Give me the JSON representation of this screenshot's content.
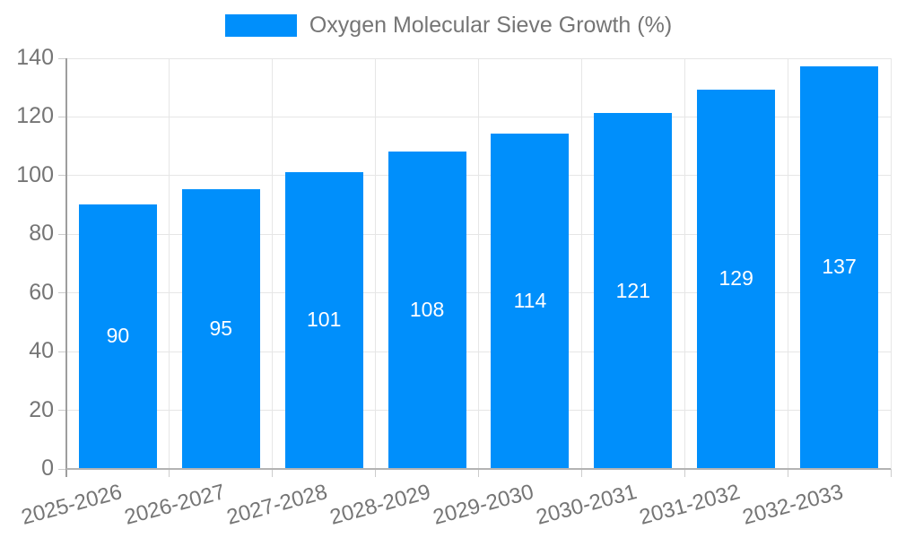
{
  "chart_data": {
    "type": "bar",
    "title": "",
    "legend": {
      "position": "top",
      "label": "Oxygen Molecular Sieve Growth (%)"
    },
    "categories": [
      "2025-2026",
      "2026-2027",
      "2027-2028",
      "2028-2029",
      "2029-2030",
      "2030-2031",
      "2031-2032",
      "2032-2033"
    ],
    "values": [
      90,
      95,
      101,
      108,
      114,
      121,
      129,
      137
    ],
    "xlabel": "",
    "ylabel": "",
    "ylim": [
      0,
      140
    ],
    "yticks": [
      0,
      20,
      40,
      60,
      80,
      100,
      120,
      140
    ],
    "grid": "on",
    "bar_color": "#008FFB",
    "bar_label_color": "#ffffff",
    "axis_text_color": "#757575",
    "gridline_color": "#e6e6e6"
  }
}
